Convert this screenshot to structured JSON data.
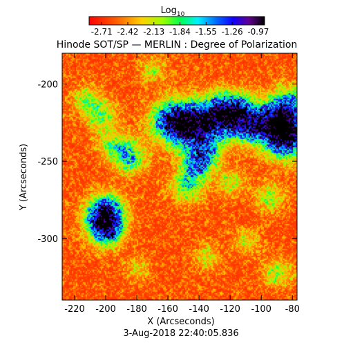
{
  "chart_data": {
    "type": "heatmap",
    "title": "Hinode SOT/SP — MERLIN : Degree of Polarization",
    "xlabel": "X (Arcseconds)",
    "ylabel": "Y (Arcseconds)",
    "timestamp": "3-Aug-2018 22:40:05.836",
    "xlim": [
      -228,
      -77
    ],
    "ylim": [
      -340,
      -180
    ],
    "xticks": [
      -220,
      -200,
      -180,
      -160,
      -140,
      -120,
      -100,
      -80
    ],
    "yticks": [
      -200,
      -250,
      -300
    ],
    "colorbar": {
      "label_base": "Log",
      "label_sub": "10",
      "range": [
        -2.85,
        -0.9
      ],
      "ticks": [
        "-2.71",
        "-2.42",
        "-2.13",
        "-1.84",
        "-1.55",
        "-1.26",
        "-0.97"
      ],
      "tick_values": [
        -2.71,
        -2.42,
        -2.13,
        -1.84,
        -1.55,
        -1.26,
        -0.97
      ],
      "colormap": "rainbow (red-orange-yellow-green-cyan-blue-purple-black)"
    },
    "features": [
      {
        "x": -157,
        "y": -224,
        "strength": 1.0
      },
      {
        "x": -145,
        "y": -226,
        "strength": 0.8
      },
      {
        "x": -128,
        "y": -221,
        "strength": 1.0
      },
      {
        "x": -115,
        "y": -218,
        "strength": 0.8
      },
      {
        "x": -106,
        "y": -228,
        "strength": 0.6
      },
      {
        "x": -90,
        "y": -224,
        "strength": 0.9
      },
      {
        "x": -84,
        "y": -234,
        "strength": 1.0
      },
      {
        "x": -82,
        "y": -212,
        "strength": 0.6
      },
      {
        "x": -137,
        "y": -243,
        "strength": 0.6
      },
      {
        "x": -142,
        "y": -252,
        "strength": 0.5
      },
      {
        "x": -148,
        "y": -266,
        "strength": 0.55
      },
      {
        "x": -185,
        "y": -247,
        "strength": 0.6
      },
      {
        "x": -196,
        "y": -238,
        "strength": 0.4
      },
      {
        "x": -200,
        "y": -282,
        "strength": 0.7
      },
      {
        "x": -202,
        "y": -289,
        "strength": 0.7
      },
      {
        "x": -199,
        "y": -296,
        "strength": 0.5
      },
      {
        "x": -203,
        "y": -220,
        "strength": 0.45
      },
      {
        "x": -212,
        "y": -210,
        "strength": 0.4
      },
      {
        "x": -170,
        "y": -190,
        "strength": 0.3
      },
      {
        "x": -120,
        "y": -264,
        "strength": 0.35
      },
      {
        "x": -95,
        "y": -273,
        "strength": 0.4
      },
      {
        "x": -90,
        "y": -322,
        "strength": 0.4
      },
      {
        "x": -135,
        "y": -312,
        "strength": 0.3
      },
      {
        "x": -180,
        "y": -320,
        "strength": 0.25
      },
      {
        "x": -110,
        "y": -302,
        "strength": 0.3
      }
    ]
  }
}
